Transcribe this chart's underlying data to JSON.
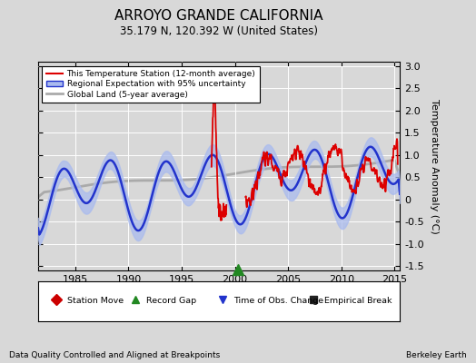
{
  "title": "ARROYO GRANDE CALIFORNIA",
  "subtitle": "35.179 N, 120.392 W (United States)",
  "ylabel": "Temperature Anomaly (°C)",
  "xlabel_left": "Data Quality Controlled and Aligned at Breakpoints",
  "xlabel_right": "Berkeley Earth",
  "xlim": [
    1981.5,
    2015.5
  ],
  "ylim": [
    -1.6,
    3.1
  ],
  "yticks": [
    -1.5,
    -1.0,
    -0.5,
    0.0,
    0.5,
    1.0,
    1.5,
    2.0,
    2.5,
    3.0
  ],
  "xticks": [
    1985,
    1990,
    1995,
    2000,
    2005,
    2010,
    2015
  ],
  "bg_color": "#d8d8d8",
  "plot_bg_color": "#d8d8d8",
  "station_color": "#dd0000",
  "regional_color": "#2233cc",
  "regional_fill_color": "#aabbee",
  "global_color": "#aaaaaa",
  "record_gap_x": 2000.3,
  "legend_items": [
    {
      "label": "This Temperature Station (12-month average)",
      "color": "#dd0000"
    },
    {
      "label": "Regional Expectation with 95% uncertainty",
      "color": "#2233cc",
      "fill": "#aabbee"
    },
    {
      "label": "Global Land (5-year average)",
      "color": "#aaaaaa"
    }
  ],
  "bottom_legend": [
    {
      "label": "Station Move",
      "marker": "D",
      "color": "#cc0000"
    },
    {
      "label": "Record Gap",
      "marker": "^",
      "color": "#228822"
    },
    {
      "label": "Time of Obs. Change",
      "marker": "v",
      "color": "#2233cc"
    },
    {
      "label": "Empirical Break",
      "marker": "s",
      "color": "#222222"
    }
  ]
}
